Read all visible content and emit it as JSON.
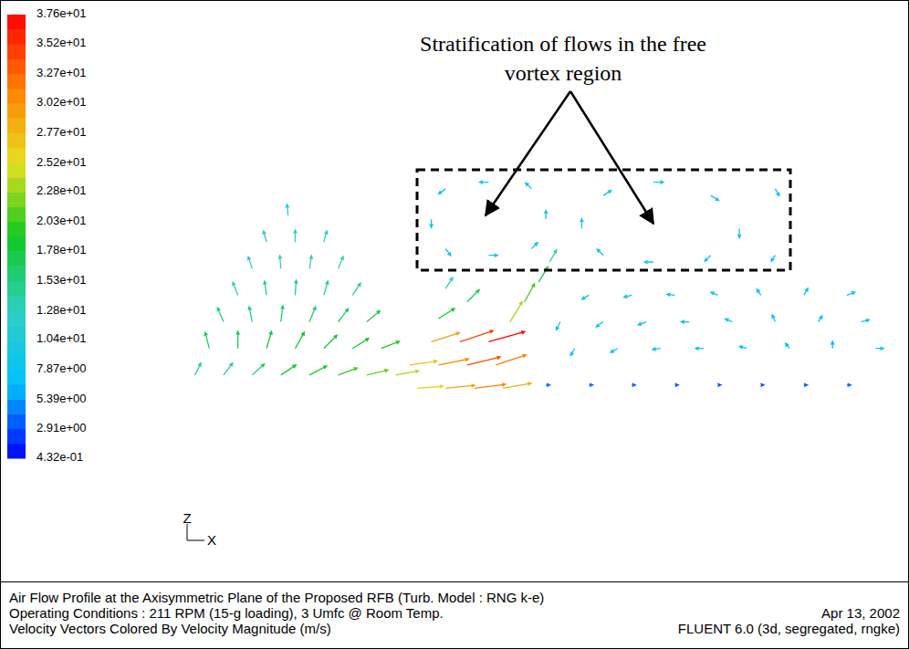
{
  "chart_data": {
    "type": "vector",
    "xlim": [
      0,
      100
    ],
    "ylim": [
      0,
      35
    ],
    "tick_labels": false,
    "vectors": {
      "x": [
        16,
        13,
        17,
        21,
        11,
        15,
        19,
        23,
        9,
        13,
        17,
        21,
        25,
        7,
        11,
        15,
        19,
        23,
        27,
        5,
        9,
        13,
        17,
        21,
        25,
        29,
        3,
        7,
        11,
        15,
        19,
        23,
        27,
        31,
        34,
        38,
        42,
        46,
        33,
        37,
        41,
        45,
        36,
        40,
        44,
        47,
        49,
        51,
        52.5,
        37,
        41,
        38,
        44,
        44,
        36,
        52,
        38,
        50,
        38,
        50,
        67,
        67,
        57,
        79,
        60,
        75,
        60,
        75,
        84,
        84,
        58,
        64,
        70,
        76,
        82,
        88,
        94,
        54,
        60,
        66,
        72,
        78,
        84,
        90,
        96,
        56,
        62,
        68,
        74,
        80,
        86,
        92,
        98,
        52,
        58,
        64,
        70,
        76,
        82,
        88,
        94
      ],
      "y": [
        28,
        24,
        24,
        24,
        20,
        20,
        20,
        20,
        16,
        16,
        16,
        16,
        16,
        12,
        12,
        12,
        12,
        12,
        12,
        8,
        8,
        8,
        8,
        8,
        8,
        8,
        4,
        4,
        4,
        4,
        4,
        4,
        4,
        4,
        2,
        2,
        2,
        2,
        5.5,
        5.5,
        5.5,
        5.5,
        9,
        9,
        9,
        12,
        15,
        18,
        21,
        12.5,
        15,
        17,
        33,
        22,
        27.4,
        27.4,
        32,
        32,
        23,
        23,
        33,
        21,
        26,
        26,
        31,
        31,
        22,
        22,
        32,
        22,
        16,
        16,
        16,
        16,
        16,
        16,
        16,
        12,
        12,
        12,
        12,
        12,
        12,
        12,
        12,
        8,
        8,
        8,
        8,
        8,
        8,
        8,
        8,
        2.5,
        2.5,
        2.5,
        2.5,
        2.5,
        2.5,
        2.5,
        2.5
      ],
      "u": [
        -1,
        -3,
        0,
        3,
        -4,
        -1,
        2,
        5,
        -5,
        -2,
        1,
        4,
        8,
        -6,
        -3,
        2,
        6,
        10,
        13,
        -4,
        0,
        5,
        9,
        13,
        16,
        18,
        6,
        9,
        12,
        15,
        17,
        19,
        21,
        23,
        26,
        29,
        31,
        28,
        27,
        30,
        33,
        30,
        28,
        33,
        36,
        12,
        10,
        9,
        7,
        16,
        12,
        7,
        -9,
        9,
        0,
        0,
        -7,
        -6,
        5,
        6,
        10,
        -9,
        0,
        0,
        8,
        8,
        -6,
        -6,
        4,
        -4,
        -7,
        -8,
        -8,
        -7,
        -4,
        4,
        8,
        -4,
        -7,
        -8,
        -8,
        -7,
        -3,
        4,
        8,
        -4,
        -7,
        -8,
        -8,
        -7,
        -4,
        0,
        8,
        4,
        4,
        3.5,
        3.5,
        3,
        3,
        3.5,
        4
      ],
      "v": [
        11,
        11,
        12,
        11,
        12,
        13,
        13,
        12,
        13,
        14,
        15,
        14,
        12,
        14,
        15,
        16,
        15,
        13,
        11,
        16,
        17,
        17,
        16,
        13,
        10,
        7,
        12,
        12,
        11,
        10,
        9,
        7,
        5,
        4,
        2,
        3,
        4,
        5,
        4,
        6,
        8,
        10,
        9,
        11,
        10,
        20,
        18,
        15,
        12,
        10,
        12,
        11,
        0,
        0,
        -8,
        9,
        -5,
        6,
        -7,
        6,
        0,
        0,
        10,
        -9,
        5,
        -5,
        6,
        -6,
        -7,
        -6,
        -4,
        -2,
        1,
        3,
        6,
        7,
        3,
        -8,
        -5,
        -3,
        0,
        3,
        7,
        6,
        2,
        -7,
        -4,
        -1,
        0,
        2,
        5,
        7,
        0,
        0,
        0,
        0,
        0,
        0,
        0,
        0,
        0
      ]
    },
    "colorbar": {
      "range": [
        0.432,
        37.6
      ],
      "ticks": [
        {
          "value": 37.6,
          "label": "3.76e+01"
        },
        {
          "value": 35.2,
          "label": "3.52e+01"
        },
        {
          "value": 32.7,
          "label": "3.27e+01"
        },
        {
          "value": 30.2,
          "label": "3.02e+01"
        },
        {
          "value": 27.7,
          "label": "2.77e+01"
        },
        {
          "value": 25.2,
          "label": "2.52e+01"
        },
        {
          "value": 22.8,
          "label": "2.28e+01"
        },
        {
          "value": 20.3,
          "label": "2.03e+01"
        },
        {
          "value": 17.8,
          "label": "1.78e+01"
        },
        {
          "value": 15.3,
          "label": "1.53e+01"
        },
        {
          "value": 12.8,
          "label": "1.28e+01"
        },
        {
          "value": 10.4,
          "label": "1.04e+01"
        },
        {
          "value": 7.87,
          "label": "7.87e+00"
        },
        {
          "value": 5.39,
          "label": "5.39e+00"
        },
        {
          "value": 2.91,
          "label": "2.91e+00"
        },
        {
          "value": 0.432,
          "label": "4.32e-01"
        }
      ]
    },
    "annotation": {
      "lines": [
        "Stratification of flows in the free",
        "vortex region"
      ]
    },
    "triad": {
      "z": "Z",
      "x": "X"
    },
    "footer": [
      [
        "Air Flow Profile at the Axisymmetric Plane of the Proposed RFB (Turb. Model : RNG k-e)"
      ],
      [
        "Operating Conditions : 211 RPM (15-g loading), 3 Umfc @ Room Temp.",
        "Apr 13, 2002"
      ],
      [
        "Velocity Vectors Colored By Velocity Magnitude (m/s)",
        "FLUENT 6.0 (3d, segregated, rngke)"
      ]
    ]
  }
}
